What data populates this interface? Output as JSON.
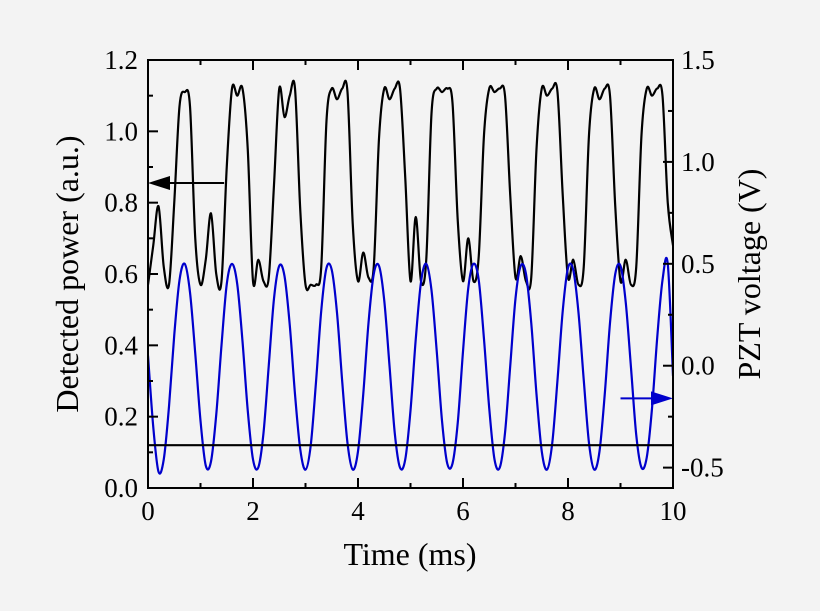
{
  "chart_data": {
    "type": "line",
    "title": "",
    "xlabel": "Time (ms)",
    "ylabel_left": "Detected power (a.u.)",
    "ylabel_right": "PZT voltage (V)",
    "xlim": [
      0,
      10
    ],
    "ylim_left": [
      0,
      1.2
    ],
    "ylim_right": [
      -0.6,
      1.5
    ],
    "x_ticks": [
      "0",
      "2",
      "4",
      "6",
      "8",
      "10"
    ],
    "y_left_ticks": [
      "0.0",
      "0.2",
      "0.4",
      "0.6",
      "0.8",
      "1.0",
      "1.2"
    ],
    "y_right_ticks": [
      "-0.5",
      "0.0",
      "0.5",
      "1.0",
      "1.5"
    ],
    "grid": false,
    "colors": {
      "detected_power": "#000000",
      "pzt_voltage": "#0000cc",
      "baseline": "#000000"
    },
    "series": [
      {
        "axis": "left",
        "color": "#000000",
        "x": [
          0.0,
          0.1,
          0.2,
          0.3,
          0.4,
          0.5,
          0.6,
          0.7,
          0.8,
          0.9,
          1.0,
          1.1,
          1.2,
          1.3,
          1.4,
          1.5,
          1.6,
          1.7,
          1.8,
          1.9,
          2.0,
          2.1,
          2.2,
          2.3,
          2.4,
          2.5,
          2.6,
          2.7,
          2.8,
          2.9,
          3.0,
          3.1,
          3.2,
          3.3,
          3.4,
          3.5,
          3.6,
          3.7,
          3.8,
          3.9,
          4.0,
          4.1,
          4.2,
          4.3,
          4.4,
          4.5,
          4.6,
          4.7,
          4.8,
          4.9,
          5.0,
          5.1,
          5.2,
          5.3,
          5.4,
          5.5,
          5.6,
          5.7,
          5.8,
          5.9,
          6.0,
          6.1,
          6.2,
          6.3,
          6.4,
          6.5,
          6.6,
          6.7,
          6.8,
          6.9,
          7.0,
          7.1,
          7.2,
          7.3,
          7.4,
          7.5,
          7.6,
          7.7,
          7.8,
          7.9,
          8.0,
          8.1,
          8.2,
          8.3,
          8.4,
          8.5,
          8.6,
          8.7,
          8.8,
          8.9,
          9.0,
          9.1,
          9.2,
          9.3,
          9.4,
          9.5,
          9.6,
          9.7,
          9.8,
          9.9,
          10.0
        ],
        "y": [
          0.57,
          0.68,
          0.79,
          0.62,
          0.57,
          0.8,
          1.07,
          1.11,
          1.07,
          0.7,
          0.57,
          0.64,
          0.77,
          0.6,
          0.58,
          0.9,
          1.12,
          1.1,
          1.12,
          0.95,
          0.58,
          0.64,
          0.58,
          0.59,
          0.85,
          1.12,
          1.04,
          1.1,
          1.12,
          0.78,
          0.57,
          0.57,
          0.57,
          0.62,
          1.03,
          1.12,
          1.09,
          1.12,
          1.11,
          0.74,
          0.58,
          0.66,
          0.59,
          0.62,
          0.98,
          1.12,
          1.09,
          1.12,
          1.12,
          0.87,
          0.58,
          0.76,
          0.58,
          0.64,
          1.05,
          1.12,
          1.11,
          1.12,
          1.08,
          0.75,
          0.58,
          0.7,
          0.58,
          0.65,
          0.99,
          1.12,
          1.11,
          1.12,
          1.1,
          0.82,
          0.59,
          0.65,
          0.58,
          0.59,
          0.95,
          1.12,
          1.1,
          1.12,
          1.11,
          0.82,
          0.59,
          0.64,
          0.57,
          0.62,
          0.99,
          1.12,
          1.09,
          1.12,
          1.1,
          0.79,
          0.58,
          0.64,
          0.57,
          0.62,
          0.99,
          1.12,
          1.1,
          1.12,
          1.1,
          0.8,
          0.68
        ]
      },
      {
        "axis": "right",
        "color": "#0000cc",
        "x": [
          0.0,
          0.1,
          0.2,
          0.3,
          0.4,
          0.5,
          0.6,
          0.7,
          0.8,
          0.9,
          1.0,
          1.1,
          1.2,
          1.3,
          1.4,
          1.5,
          1.6,
          1.7,
          1.8,
          1.9,
          2.0,
          2.1,
          2.2,
          2.3,
          2.4,
          2.5,
          2.6,
          2.7,
          2.8,
          2.9,
          3.0,
          3.1,
          3.2,
          3.3,
          3.4,
          3.5,
          3.6,
          3.7,
          3.8,
          3.9,
          4.0,
          4.1,
          4.2,
          4.3,
          4.4,
          4.5,
          4.6,
          4.7,
          4.8,
          4.9,
          5.0,
          5.1,
          5.2,
          5.3,
          5.4,
          5.5,
          5.6,
          5.7,
          5.8,
          5.9,
          6.0,
          6.1,
          6.2,
          6.3,
          6.4,
          6.5,
          6.6,
          6.7,
          6.8,
          6.9,
          7.0,
          7.1,
          7.2,
          7.3,
          7.4,
          7.5,
          7.6,
          7.7,
          7.8,
          7.9,
          8.0,
          8.1,
          8.2,
          8.3,
          8.4,
          8.5,
          8.6,
          8.7,
          8.8,
          8.9,
          9.0,
          9.1,
          9.2,
          9.3,
          9.4,
          9.5,
          9.6,
          9.7,
          9.8,
          9.9,
          10.0
        ],
        "y": [
          0.05,
          -0.3,
          -0.52,
          -0.46,
          -0.2,
          0.15,
          0.42,
          0.5,
          0.36,
          0.06,
          -0.27,
          -0.49,
          -0.47,
          -0.24,
          0.1,
          0.4,
          0.5,
          0.4,
          0.12,
          -0.22,
          -0.46,
          -0.5,
          -0.33,
          0.0,
          0.33,
          0.49,
          0.44,
          0.2,
          -0.14,
          -0.41,
          -0.51,
          -0.39,
          -0.08,
          0.27,
          0.48,
          0.47,
          0.26,
          -0.08,
          -0.38,
          -0.51,
          -0.42,
          -0.14,
          0.21,
          0.45,
          0.49,
          0.32,
          0.0,
          -0.33,
          -0.5,
          -0.46,
          -0.22,
          0.13,
          0.41,
          0.5,
          0.37,
          0.07,
          -0.27,
          -0.48,
          -0.48,
          -0.28,
          0.07,
          0.38,
          0.5,
          0.42,
          0.13,
          -0.21,
          -0.46,
          -0.5,
          -0.33,
          0.0,
          0.33,
          0.49,
          0.45,
          0.21,
          -0.14,
          -0.42,
          -0.51,
          -0.38,
          -0.07,
          0.27,
          0.48,
          0.47,
          0.26,
          -0.07,
          -0.38,
          -0.51,
          -0.42,
          -0.14,
          0.21,
          0.45,
          0.49,
          0.31,
          -0.01,
          -0.34,
          -0.5,
          -0.45,
          -0.21,
          0.14,
          0.42,
          0.5,
          -0.05
        ]
      },
      {
        "axis": "left",
        "color": "#000000",
        "x": [
          0,
          10
        ],
        "y": [
          0.12,
          0.12
        ]
      }
    ],
    "annotations": [
      {
        "type": "arrow",
        "direction": "left",
        "target_axis": "left",
        "color": "#000000",
        "x_from": 1.45,
        "x_to": 0.0,
        "y": 0.855
      },
      {
        "type": "arrow",
        "direction": "right",
        "target_axis": "right",
        "color": "#0000cc",
        "x_from": 9.0,
        "x_to": 10.0,
        "y": -0.16
      }
    ]
  }
}
